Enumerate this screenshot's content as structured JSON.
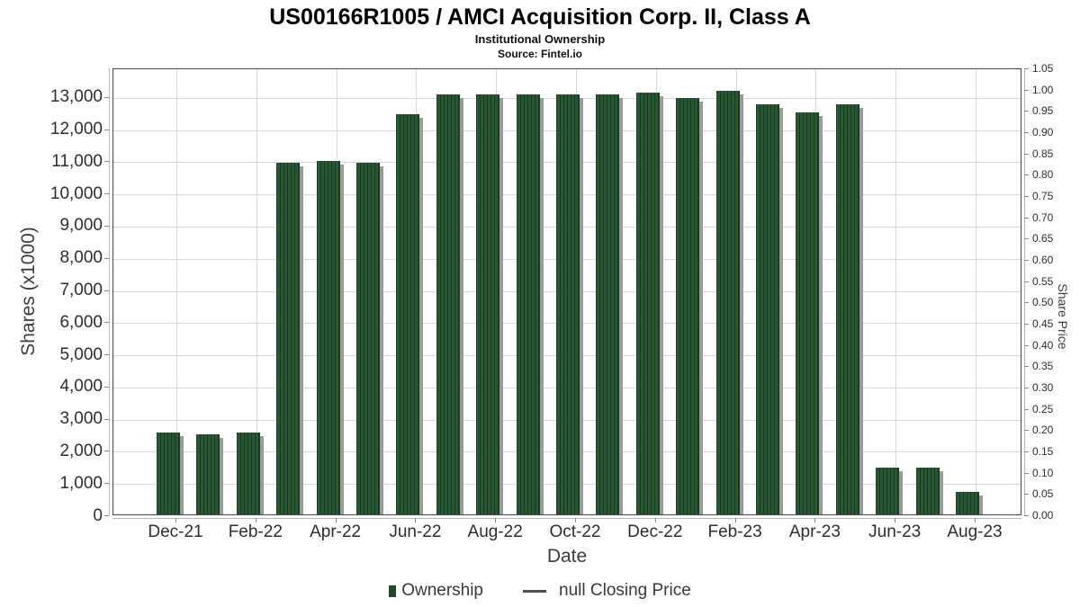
{
  "header": {
    "title": "US00166R1005 / AMCI Acquisition Corp. II, Class A",
    "subtitle": "Institutional Ownership",
    "source": "Source: Fintel.io"
  },
  "chart_data": {
    "type": "bar",
    "title": "US00166R1005 / AMCI Acquisition Corp. II, Class A",
    "subtitle": "Institutional Ownership",
    "source": "Source: Fintel.io",
    "xlabel": "Date",
    "ylabel_left": "Shares (x1000)",
    "ylabel_right": "Share Price",
    "categories": [
      "Dec-21",
      "Jan-22",
      "Feb-22",
      "Mar-22",
      "Apr-22",
      "May-22",
      "Jun-22",
      "Jul-22",
      "Aug-22",
      "Sep-22",
      "Oct-22",
      "Nov-22",
      "Dec-22",
      "Jan-23",
      "Feb-23",
      "Mar-23",
      "Apr-23",
      "May-23",
      "Jun-23",
      "Jul-23",
      "Aug-23"
    ],
    "series": [
      {
        "name": "Ownership",
        "values": [
          2600,
          2550,
          2600,
          10970,
          11030,
          10970,
          12500,
          13100,
          13100,
          13120,
          13120,
          13110,
          13170,
          13000,
          13230,
          12800,
          12550,
          12800,
          1500,
          1500,
          750
        ],
        "color": "#1e4a28"
      }
    ],
    "x_tick_labels": [
      "Dec-21",
      "Feb-22",
      "Apr-22",
      "Jun-22",
      "Aug-22",
      "Oct-22",
      "Dec-22",
      "Feb-23",
      "Apr-23",
      "Jun-23",
      "Aug-23"
    ],
    "x_tick_every": 2,
    "ylim_left": [
      0,
      13890
    ],
    "ytick_left_values": [
      0,
      1000,
      2000,
      3000,
      4000,
      5000,
      6000,
      7000,
      8000,
      9000,
      10000,
      11000,
      12000,
      13000
    ],
    "ytick_left_labels": [
      "0",
      "1,000",
      "2,000",
      "3,000",
      "4,000",
      "5,000",
      "6,000",
      "7,000",
      "8,000",
      "9,000",
      "10,000",
      "11,000",
      "12,000",
      "13,000"
    ],
    "ylim_right": [
      0,
      1.05
    ],
    "ytick_right_labels": [
      "0.00",
      "0.05",
      "0.10",
      "0.15",
      "0.20",
      "0.25",
      "0.30",
      "0.35",
      "0.40",
      "0.45",
      "0.50",
      "0.55",
      "0.60",
      "0.65",
      "0.70",
      "0.75",
      "0.80",
      "0.85",
      "0.90",
      "0.95",
      "1.00",
      "1.05"
    ],
    "grid": true,
    "legend_position": "bottom",
    "legend": {
      "entries": [
        {
          "label": "Ownership",
          "marker": "square",
          "color": "#1e4a28"
        },
        {
          "label": "null Closing Price",
          "marker": "line",
          "color": "#4f4f4f"
        }
      ]
    },
    "bar_style": {
      "stripe_light": "#2a5733",
      "stripe_dark": "#17391d",
      "shadow": "#9b9b9b"
    }
  }
}
